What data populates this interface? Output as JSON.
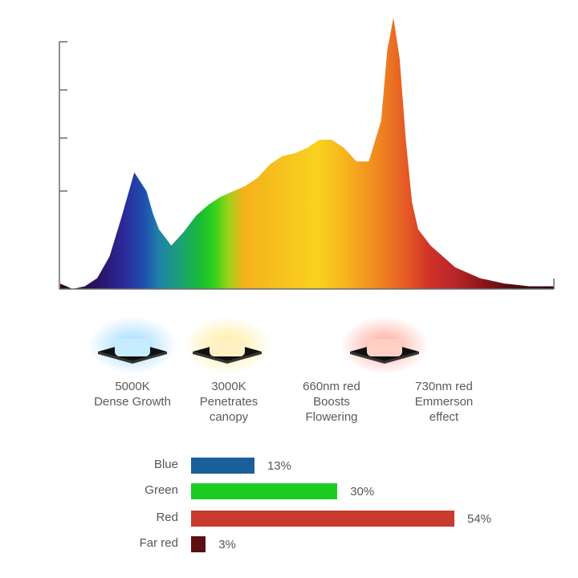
{
  "chart_data": [
    {
      "type": "area",
      "title": "",
      "xlabel": "",
      "ylabel": "",
      "x": [
        380,
        390,
        400,
        410,
        420,
        430,
        440,
        450,
        455,
        460,
        470,
        480,
        490,
        500,
        510,
        520,
        530,
        540,
        550,
        560,
        570,
        580,
        590,
        600,
        610,
        620,
        630,
        640,
        645,
        650,
        655,
        660,
        665,
        670,
        680,
        690,
        700,
        720,
        740,
        760,
        780
      ],
      "values": [
        0.02,
        0.0,
        0.01,
        0.04,
        0.12,
        0.27,
        0.43,
        0.36,
        0.28,
        0.22,
        0.16,
        0.21,
        0.27,
        0.31,
        0.34,
        0.36,
        0.38,
        0.41,
        0.46,
        0.49,
        0.5,
        0.52,
        0.55,
        0.55,
        0.52,
        0.47,
        0.47,
        0.62,
        0.88,
        1.0,
        0.85,
        0.55,
        0.32,
        0.22,
        0.16,
        0.12,
        0.08,
        0.04,
        0.02,
        0.01,
        0.01
      ],
      "grid": false,
      "legend": "none"
    },
    {
      "type": "bar",
      "orientation": "horizontal",
      "categories": [
        "Blue",
        "Green",
        "Red",
        "Far red"
      ],
      "values": [
        13,
        30,
        54,
        3
      ],
      "value_labels": [
        "13%",
        "30%",
        "54%",
        "3%"
      ],
      "colors": [
        "#1a5e9a",
        "#1ccc22",
        "#c93b2f",
        "#5a1010"
      ],
      "xlim": [
        0,
        54
      ]
    }
  ],
  "leds": [
    {
      "line1": "5000K",
      "line2": "Dense Growth",
      "line3": "",
      "glow": "#8fd4ff",
      "chip": "#c8ecff"
    },
    {
      "line1": "3000K",
      "line2": "Penetrates",
      "line3": "canopy",
      "glow": "#ffe98a",
      "chip": "#fff1c4"
    },
    {
      "line1": "660nm red",
      "line2": "Boosts",
      "line3": "Flowering",
      "glow": "#ff9a8a",
      "chip": "#ffcfc6"
    },
    {
      "line1": "730nm red",
      "line2": "Emmerson",
      "line3": "effect",
      "glow": "#ffffff",
      "chip": "#ffffff"
    }
  ]
}
